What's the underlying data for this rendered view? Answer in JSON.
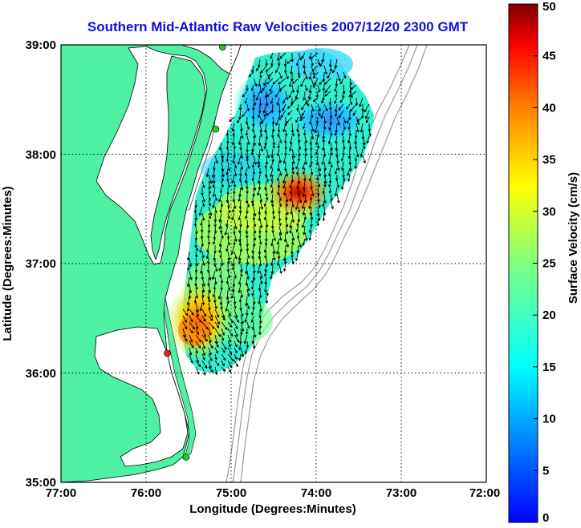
{
  "chart_data": {
    "type": "heatmap",
    "title": "Southern Mid-Atlantic Raw Velocities 2007/12/20 2300 GMT",
    "xlabel": "Longitude (Degrees:Minutes)",
    "ylabel": "Latitude (Degrees:Minutes)",
    "x_ticks": [
      "77:00",
      "76:00",
      "75:00",
      "74:00",
      "73:00",
      "72:00"
    ],
    "y_ticks": [
      "39:00",
      "38:00",
      "37:00",
      "36:00",
      "35:00"
    ],
    "xlim": [
      -77,
      -72
    ],
    "ylim": [
      35,
      39
    ],
    "grid": true,
    "colorbar": {
      "label": "Surface Velocity (cm/s)",
      "range": [
        0,
        50
      ],
      "ticks": [
        "0",
        "5",
        "10",
        "15",
        "20",
        "25",
        "30",
        "35",
        "40",
        "45",
        "50"
      ]
    },
    "velocity_field_regions": [
      {
        "lon": -74.3,
        "lat": 37.7,
        "speed_cm_s": 45
      },
      {
        "lon": -75.6,
        "lat": 36.3,
        "speed_cm_s": 33
      },
      {
        "lon": -75.0,
        "lat": 38.5,
        "speed_cm_s": 8
      },
      {
        "lon": -74.0,
        "lat": 38.0,
        "speed_cm_s": 7
      },
      {
        "lon": -75.2,
        "lat": 37.2,
        "speed_cm_s": 24
      },
      {
        "lon": -74.7,
        "lat": 37.0,
        "speed_cm_s": 18
      }
    ],
    "sites": [
      {
        "lon": -75.1,
        "lat": 38.98,
        "color": "#22cc22"
      },
      {
        "lon": -75.18,
        "lat": 38.23,
        "color": "#22cc22"
      },
      {
        "lon": -75.75,
        "lat": 36.18,
        "color": "#ee2222"
      },
      {
        "lon": -75.53,
        "lat": 35.23,
        "color": "#22cc22"
      }
    ]
  },
  "colors": {
    "land": "#4ef0a4",
    "ocean": "#ffffff",
    "bathymetry": "#9a9a9a",
    "title": "#1010e0"
  }
}
